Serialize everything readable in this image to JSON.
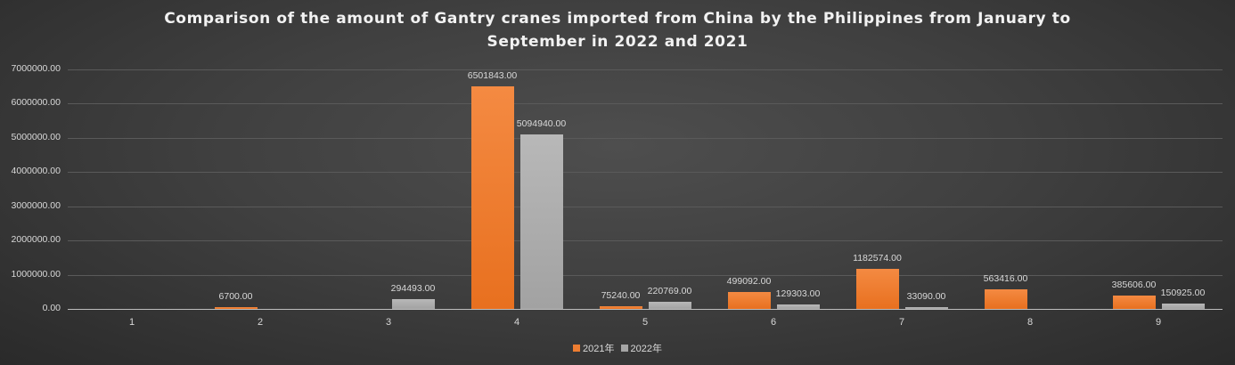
{
  "chart_data": {
    "type": "bar",
    "title": "Comparison of the amount of Gantry cranes imported from China by the Philippines from January to September in 2022 and 2021",
    "title_lines": [
      "Comparison of the amount of Gantry cranes imported from China by the Philippines from January to",
      "September in 2022 and 2021"
    ],
    "xlabel": "",
    "ylabel": "",
    "categories": [
      "1",
      "2",
      "3",
      "4",
      "5",
      "6",
      "7",
      "8",
      "9"
    ],
    "series": [
      {
        "name": "2021年",
        "color": "#ed7d31",
        "values": [
          null,
          6700.0,
          null,
          6501843.0,
          75240.0,
          499092.0,
          1182574.0,
          563416.0,
          385606.0
        ],
        "labels": [
          "",
          "6700.00",
          "",
          "6501843.00",
          "75240.00",
          "499092.00",
          "1182574.00",
          "563416.00",
          "385606.00"
        ]
      },
      {
        "name": "2022年",
        "color": "#a5a5a5",
        "values": [
          null,
          null,
          294493.0,
          5094940.0,
          220769.0,
          129303.0,
          33090.0,
          null,
          150925.0
        ],
        "labels": [
          "",
          "",
          "294493.00",
          "5094940.00",
          "220769.00",
          "129303.00",
          "33090.00",
          "",
          "150925.00"
        ]
      }
    ],
    "ylim": [
      0,
      7000000
    ],
    "yticks": [
      "0.00",
      "1000000.00",
      "2000000.00",
      "3000000.00",
      "4000000.00",
      "5000000.00",
      "6000000.00",
      "7000000.00"
    ],
    "grid": true,
    "legend_position": "bottom"
  }
}
